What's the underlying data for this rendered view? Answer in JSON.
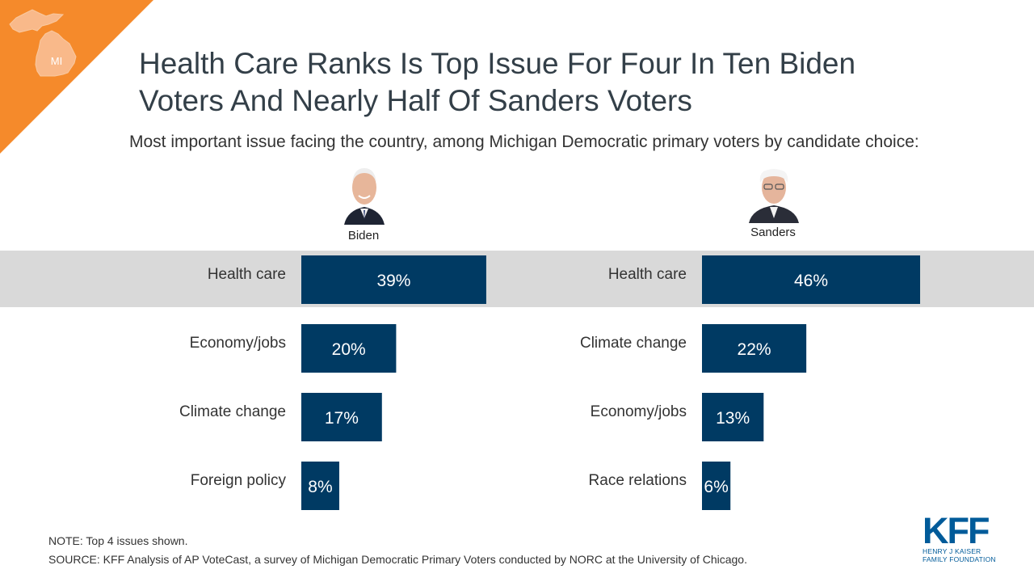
{
  "badge": {
    "state_abbr": "MI",
    "color": "#f58a2b"
  },
  "title_lines": [
    "Health Care Ranks Is Top Issue For Four In Ten Biden",
    "Voters And Nearly Half Of Sanders Voters"
  ],
  "subtitle": "Most important issue facing the country, among Michigan Democratic primary voters by candidate choice:",
  "candidates": [
    {
      "name": "Biden"
    },
    {
      "name": "Sanders"
    }
  ],
  "chart_data": [
    {
      "type": "bar",
      "orientation": "horizontal",
      "title": "Biden",
      "categories": [
        "Health care",
        "Economy/jobs",
        "Climate change",
        "Foreign policy"
      ],
      "values": [
        39,
        20,
        17,
        8
      ],
      "value_labels": [
        "39%",
        "20%",
        "17%",
        "8%"
      ],
      "unit": "%",
      "bar_color": "#003a63",
      "highlight_category": "Health care",
      "grid": false
    },
    {
      "type": "bar",
      "orientation": "horizontal",
      "title": "Sanders",
      "categories": [
        "Health care",
        "Climate change",
        "Economy/jobs",
        "Race relations"
      ],
      "values": [
        46,
        22,
        13,
        6
      ],
      "value_labels": [
        "46%",
        "22%",
        "13%",
        "6%"
      ],
      "unit": "%",
      "bar_color": "#003a63",
      "highlight_category": "Health care",
      "grid": false
    }
  ],
  "note": "NOTE: Top 4 issues shown.",
  "source": "SOURCE: KFF Analysis of AP VoteCast, a survey of Michigan Democratic Primary Voters conducted by NORC at the University  of Chicago.",
  "logo": {
    "mark": "KFF",
    "line1": "HENRY J KAISER",
    "line2": "FAMILY FOUNDATION",
    "color": "#005b9a"
  }
}
